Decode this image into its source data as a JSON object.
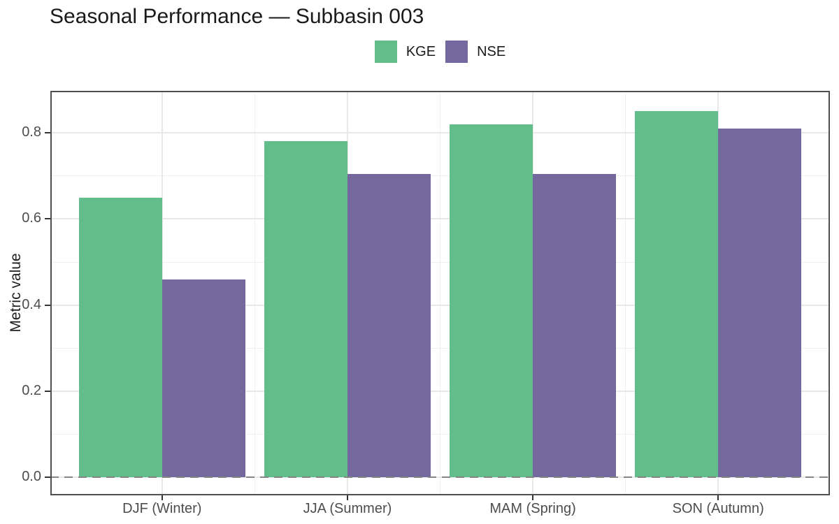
{
  "chart_data": {
    "type": "bar",
    "title": "Seasonal Performance — Subbasin 003",
    "ylabel": "Metric value",
    "xlabel": "",
    "categories": [
      "DJF (Winter)",
      "JJA (Summer)",
      "MAM (Spring)",
      "SON (Autumn)"
    ],
    "series": [
      {
        "name": "KGE",
        "color": "#63BD8A",
        "values": [
          0.65,
          0.78,
          0.82,
          0.85
        ]
      },
      {
        "name": "NSE",
        "color": "#75689F",
        "values": [
          0.46,
          0.705,
          0.705,
          0.81
        ]
      }
    ],
    "yticks": [
      0,
      0.2,
      0.4,
      0.6,
      0.8
    ],
    "ytick_labels": [
      "0.0",
      "0.2",
      "0.4",
      "0.6",
      "0.8"
    ],
    "ylim": [
      -0.043,
      0.893
    ],
    "grid": "major and minor horizontal, major and minor vertical",
    "legend_position": "top-center",
    "zero_line": {
      "y": 0,
      "style": "dashed",
      "color": "#858585"
    }
  },
  "colors": {
    "kge": "#63BD8A",
    "nse": "#75689F",
    "grid_major": "#e8e8e8",
    "grid_minor": "#f0f0f0",
    "panel_border": "#4f4f4f",
    "zero_line": "#858585",
    "axis_tick": "#333333",
    "axis_text": "#4d4d4d",
    "title_text": "#1a1a1a"
  }
}
